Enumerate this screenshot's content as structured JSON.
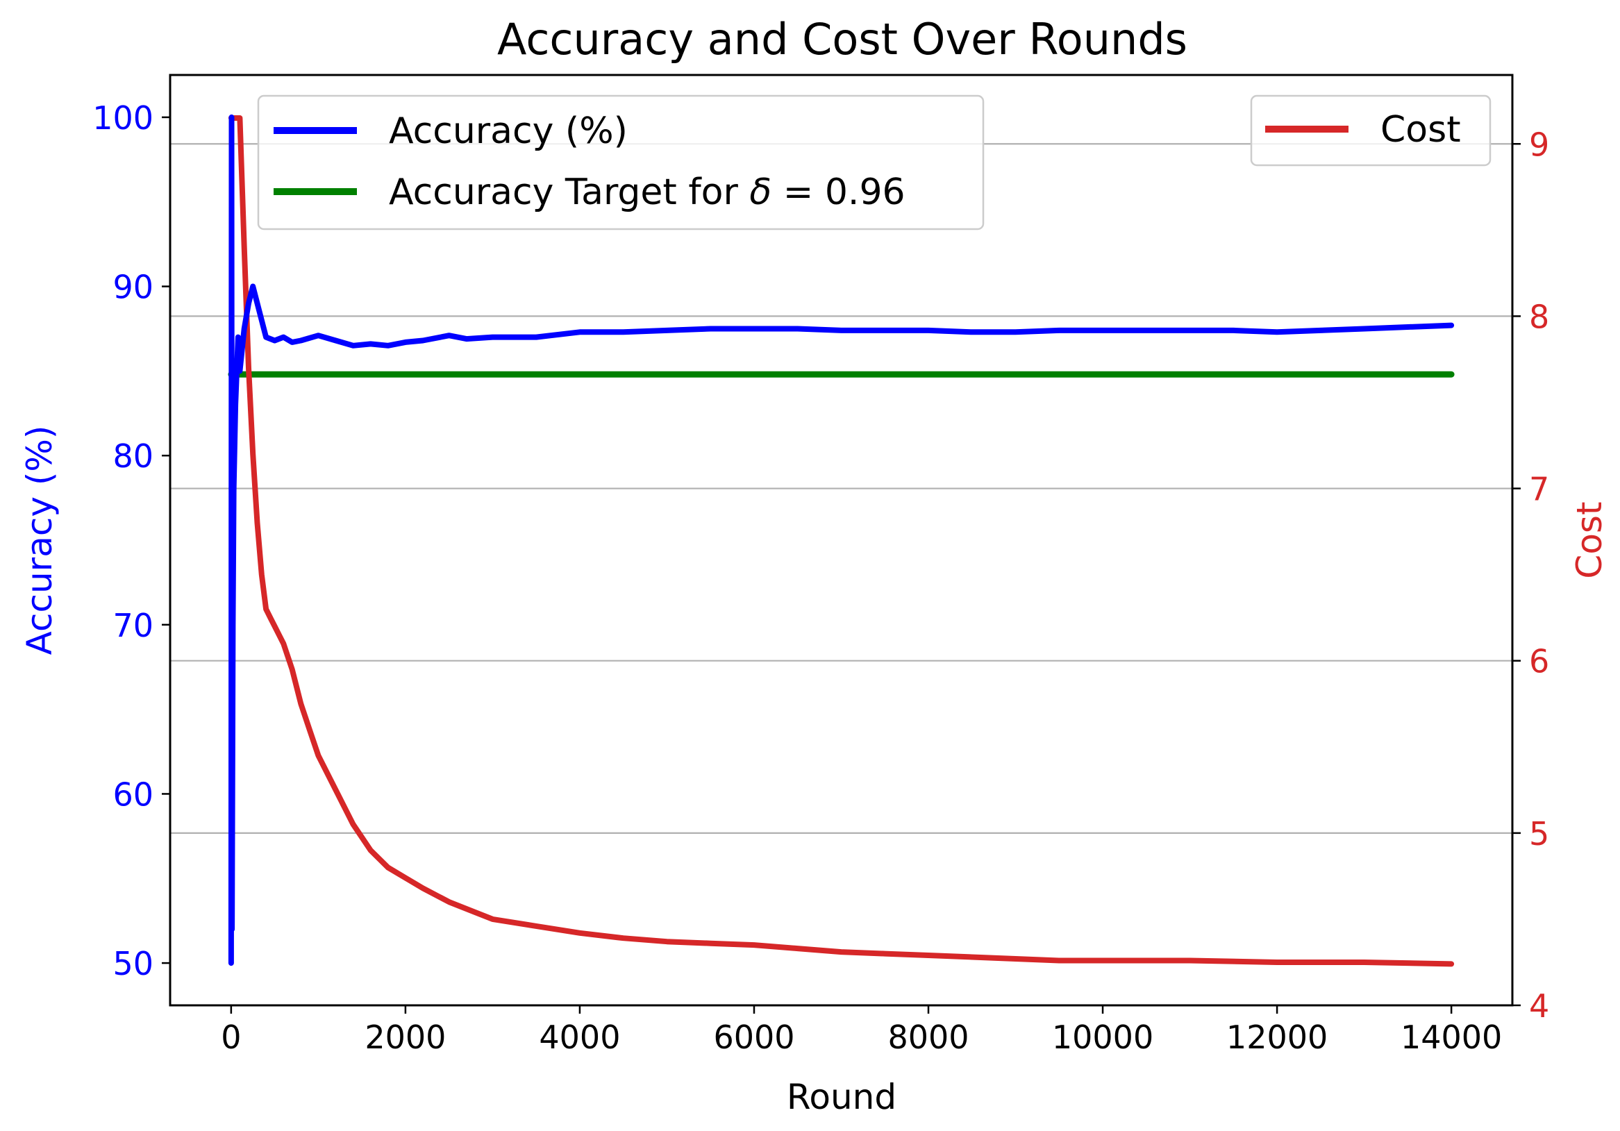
{
  "chart_data": {
    "type": "line",
    "title": "Accuracy and Cost Over Rounds",
    "xlabel": "Round",
    "ylabel_left": "Accuracy (%)",
    "ylabel_right": "Cost",
    "xlim": [
      -700,
      14700
    ],
    "ylim_left": [
      47.5,
      102.5
    ],
    "ylim_right": [
      4.0,
      9.4
    ],
    "xticks": [
      0,
      2000,
      4000,
      6000,
      8000,
      10000,
      12000,
      14000
    ],
    "xtick_labels": [
      "0",
      "2000",
      "4000",
      "6000",
      "8000",
      "10000",
      "12000",
      "14000"
    ],
    "yticks_left": [
      50,
      60,
      70,
      80,
      90,
      100
    ],
    "ytick_labels_left": [
      "50",
      "60",
      "70",
      "80",
      "90",
      "100"
    ],
    "yticks_right": [
      4,
      5,
      6,
      7,
      8,
      9
    ],
    "ytick_labels_right": [
      "4",
      "5",
      "6",
      "7",
      "8",
      "9"
    ],
    "grid": "horizontal lines at right-axis ticks",
    "legends": [
      {
        "placement": "top-left",
        "entries": [
          {
            "label": "Accuracy (%)",
            "color": "#0000ff"
          },
          {
            "label_prefix": "Accuracy Target for ",
            "label_symbol": "δ",
            "label_suffix": " = 0.96",
            "color": "#008000"
          }
        ]
      },
      {
        "placement": "top-right",
        "entries": [
          {
            "label": "Cost",
            "color": "#d62728"
          }
        ]
      }
    ],
    "series": [
      {
        "name": "Accuracy (%)",
        "axis": "left",
        "color": "#0000ff",
        "points": [
          [
            0,
            50
          ],
          [
            5,
            100
          ],
          [
            10,
            52
          ],
          [
            20,
            70
          ],
          [
            30,
            78
          ],
          [
            50,
            83
          ],
          [
            80,
            87
          ],
          [
            100,
            85
          ],
          [
            150,
            87.5
          ],
          [
            200,
            89
          ],
          [
            250,
            90
          ],
          [
            300,
            89
          ],
          [
            350,
            88
          ],
          [
            400,
            87
          ],
          [
            500,
            86.8
          ],
          [
            600,
            87
          ],
          [
            700,
            86.7
          ],
          [
            800,
            86.8
          ],
          [
            1000,
            87.1
          ],
          [
            1200,
            86.8
          ],
          [
            1400,
            86.5
          ],
          [
            1600,
            86.6
          ],
          [
            1800,
            86.5
          ],
          [
            2000,
            86.7
          ],
          [
            2200,
            86.8
          ],
          [
            2500,
            87.1
          ],
          [
            2700,
            86.9
          ],
          [
            3000,
            87.0
          ],
          [
            3500,
            87.0
          ],
          [
            4000,
            87.3
          ],
          [
            4500,
            87.3
          ],
          [
            5000,
            87.4
          ],
          [
            5500,
            87.5
          ],
          [
            6000,
            87.5
          ],
          [
            6500,
            87.5
          ],
          [
            7000,
            87.4
          ],
          [
            7500,
            87.4
          ],
          [
            8000,
            87.4
          ],
          [
            8500,
            87.3
          ],
          [
            9000,
            87.3
          ],
          [
            9500,
            87.4
          ],
          [
            10000,
            87.4
          ],
          [
            10500,
            87.4
          ],
          [
            11000,
            87.4
          ],
          [
            11500,
            87.4
          ],
          [
            12000,
            87.3
          ],
          [
            12500,
            87.4
          ],
          [
            13000,
            87.5
          ],
          [
            13500,
            87.6
          ],
          [
            14000,
            87.7
          ]
        ]
      },
      {
        "name": "Accuracy Target for δ = 0.96",
        "axis": "left",
        "color": "#008000",
        "points": [
          [
            0,
            84.8
          ],
          [
            14000,
            84.8
          ]
        ]
      },
      {
        "name": "Cost",
        "axis": "right",
        "color": "#d62728",
        "points": [
          [
            0,
            9.15
          ],
          [
            100,
            9.15
          ],
          [
            150,
            8.4
          ],
          [
            200,
            7.7
          ],
          [
            250,
            7.2
          ],
          [
            300,
            6.8
          ],
          [
            350,
            6.5
          ],
          [
            400,
            6.3
          ],
          [
            450,
            6.25
          ],
          [
            500,
            6.2
          ],
          [
            550,
            6.15
          ],
          [
            600,
            6.1
          ],
          [
            700,
            5.95
          ],
          [
            800,
            5.75
          ],
          [
            900,
            5.6
          ],
          [
            1000,
            5.45
          ],
          [
            1200,
            5.25
          ],
          [
            1400,
            5.05
          ],
          [
            1600,
            4.9
          ],
          [
            1800,
            4.8
          ],
          [
            2000,
            4.74
          ],
          [
            2200,
            4.68
          ],
          [
            2500,
            4.6
          ],
          [
            2800,
            4.54
          ],
          [
            3000,
            4.5
          ],
          [
            3500,
            4.46
          ],
          [
            4000,
            4.42
          ],
          [
            4500,
            4.39
          ],
          [
            5000,
            4.37
          ],
          [
            5500,
            4.36
          ],
          [
            6000,
            4.35
          ],
          [
            6500,
            4.33
          ],
          [
            7000,
            4.31
          ],
          [
            7500,
            4.3
          ],
          [
            8000,
            4.29
          ],
          [
            8500,
            4.28
          ],
          [
            9000,
            4.27
          ],
          [
            9500,
            4.26
          ],
          [
            10000,
            4.26
          ],
          [
            11000,
            4.26
          ],
          [
            12000,
            4.25
          ],
          [
            13000,
            4.25
          ],
          [
            14000,
            4.24
          ]
        ]
      }
    ]
  }
}
